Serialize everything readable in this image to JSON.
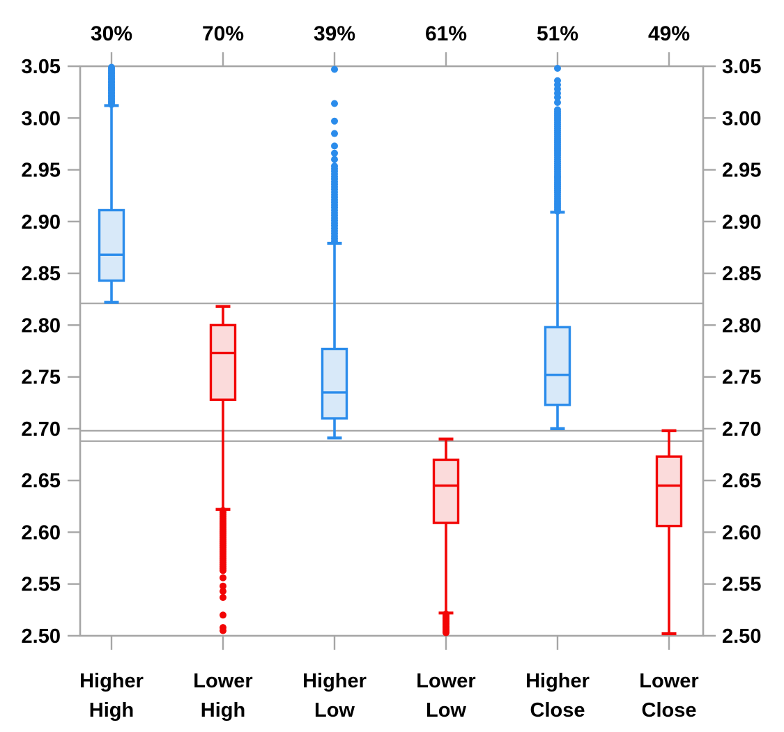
{
  "chart_data": {
    "type": "box",
    "title": "",
    "xlabel": "",
    "ylabel": "",
    "axis": {
      "min": 2.5,
      "max": 3.05,
      "step": 0.05,
      "tick_labels": [
        "3.05",
        "3.00",
        "2.95",
        "2.90",
        "2.85",
        "2.80",
        "2.75",
        "2.70",
        "2.65",
        "2.60",
        "2.55",
        "2.50"
      ],
      "label_sides": [
        "left",
        "right"
      ],
      "grid": "off"
    },
    "reference_lines": [
      2.821,
      2.698,
      2.688
    ],
    "top_axis_labels": [
      "30%",
      "70%",
      "39%",
      "61%",
      "51%",
      "49%"
    ],
    "colors": {
      "blue_stroke": "#2B8CEB",
      "blue_fill": "#D8E9F9",
      "red_stroke": "#F20505",
      "red_fill": "#FBDBDB",
      "axis": "#A6A6A6",
      "text": "#000000"
    },
    "series": [
      {
        "label_line1": "Higher",
        "label_line2": "High",
        "top_label": "30%",
        "color": "blue",
        "whisker_low": 2.822,
        "q1": 2.843,
        "median": 2.868,
        "q3": 2.911,
        "whisker_high": 3.012,
        "outliers": [
          3.013,
          3.0145,
          3.016,
          3.0175,
          3.019,
          3.0205,
          3.022,
          3.0235,
          3.025,
          3.0265,
          3.028,
          3.0295,
          3.031,
          3.0325,
          3.034,
          3.0355,
          3.037,
          3.0385,
          3.04,
          3.0415,
          3.043,
          3.0445,
          3.046,
          3.0475,
          3.049
        ]
      },
      {
        "label_line1": "Lower",
        "label_line2": "High",
        "top_label": "70%",
        "color": "red",
        "whisker_low": 2.622,
        "q1": 2.728,
        "median": 2.773,
        "q3": 2.8,
        "whisker_high": 2.818,
        "outliers": [
          2.621,
          2.619,
          2.617,
          2.615,
          2.613,
          2.611,
          2.609,
          2.607,
          2.605,
          2.603,
          2.601,
          2.599,
          2.597,
          2.595,
          2.593,
          2.591,
          2.589,
          2.587,
          2.585,
          2.583,
          2.581,
          2.579,
          2.577,
          2.575,
          2.573,
          2.571,
          2.569,
          2.567,
          2.565,
          2.563,
          2.556,
          2.548,
          2.543,
          2.537,
          2.52,
          2.508,
          2.505
        ]
      },
      {
        "label_line1": "Higher",
        "label_line2": "Low",
        "top_label": "39%",
        "color": "blue",
        "whisker_low": 2.691,
        "q1": 2.71,
        "median": 2.735,
        "q3": 2.777,
        "whisker_high": 2.879,
        "outliers": [
          2.881,
          2.8835,
          2.886,
          2.8885,
          2.891,
          2.8935,
          2.896,
          2.8985,
          2.901,
          2.9035,
          2.906,
          2.9085,
          2.911,
          2.9135,
          2.916,
          2.9185,
          2.921,
          2.9235,
          2.926,
          2.9285,
          2.931,
          2.9335,
          2.936,
          2.9385,
          2.941,
          2.9435,
          2.946,
          2.9485,
          2.951,
          2.9535,
          2.96,
          2.966,
          2.973,
          2.985,
          2.997,
          3.014,
          3.047
        ]
      },
      {
        "label_line1": "Lower",
        "label_line2": "Low",
        "top_label": "61%",
        "color": "red",
        "whisker_low": 2.522,
        "q1": 2.609,
        "median": 2.645,
        "q3": 2.67,
        "whisker_high": 2.69,
        "outliers": [
          2.521,
          2.5195,
          2.518,
          2.5165,
          2.515,
          2.5135,
          2.512,
          2.5105,
          2.509,
          2.5075,
          2.506,
          2.5045,
          2.503
        ]
      },
      {
        "label_line1": "Higher",
        "label_line2": "Close",
        "top_label": "51%",
        "color": "blue",
        "whisker_low": 2.7,
        "q1": 2.723,
        "median": 2.752,
        "q3": 2.798,
        "whisker_high": 2.909,
        "outliers": [
          2.91,
          2.912,
          2.914,
          2.916,
          2.918,
          2.92,
          2.922,
          2.924,
          2.926,
          2.928,
          2.93,
          2.932,
          2.934,
          2.936,
          2.938,
          2.94,
          2.942,
          2.944,
          2.946,
          2.948,
          2.95,
          2.952,
          2.954,
          2.956,
          2.958,
          2.96,
          2.962,
          2.964,
          2.966,
          2.968,
          2.97,
          2.972,
          2.974,
          2.976,
          2.978,
          2.98,
          2.982,
          2.984,
          2.986,
          2.988,
          2.99,
          2.992,
          2.994,
          2.996,
          2.998,
          3.0,
          3.002,
          3.004,
          3.006,
          3.008,
          3.015,
          3.02,
          3.024,
          3.028,
          3.032,
          3.036,
          3.048
        ]
      },
      {
        "label_line1": "Lower",
        "label_line2": "Close",
        "top_label": "49%",
        "color": "red",
        "whisker_low": 2.502,
        "q1": 2.606,
        "median": 2.645,
        "q3": 2.673,
        "whisker_high": 2.698,
        "outliers": []
      }
    ]
  }
}
